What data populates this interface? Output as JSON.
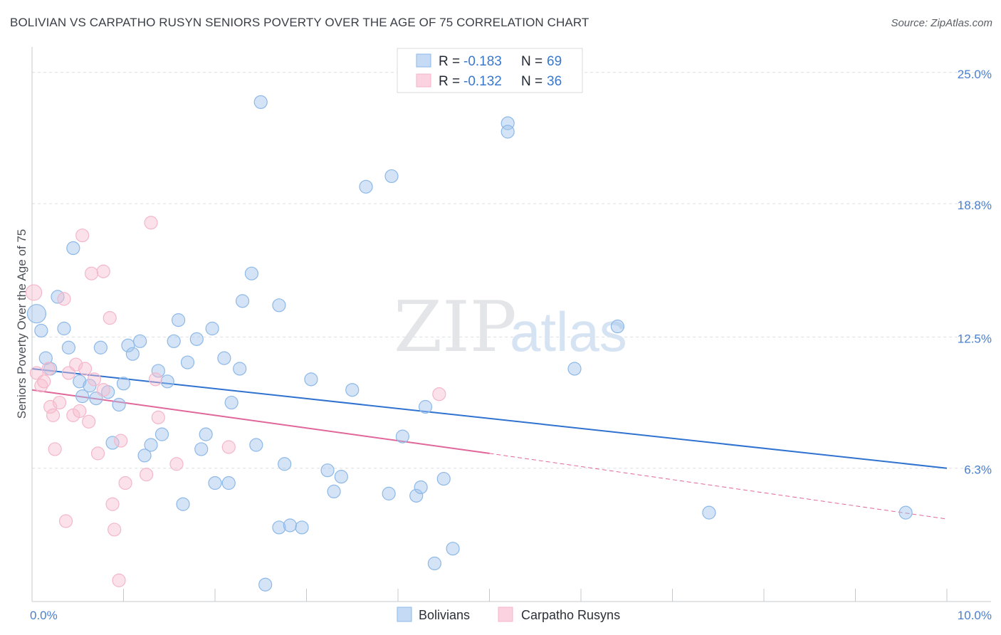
{
  "title": "BOLIVIAN VS CARPATHO RUSYN SENIORS POVERTY OVER THE AGE OF 75 CORRELATION CHART",
  "source": "Source: ZipAtlas.com",
  "watermark": {
    "zip": "ZIP",
    "atlas": "atlas"
  },
  "legend": {
    "r_label": "R = ",
    "n_label": "N = ",
    "rows": [
      {
        "series": "Bolivians",
        "r": "-0.183",
        "n": "69"
      },
      {
        "series": "Carpatho Rusyns",
        "r": "-0.132",
        "n": "36"
      }
    ]
  },
  "chart_data": {
    "type": "scatter",
    "title": "BOLIVIAN VS CARPATHO RUSYN SENIORS POVERTY OVER THE AGE OF 75 CORRELATION CHART",
    "xlabel": "",
    "ylabel": "Seniors Poverty Over the Age of 75",
    "xlim": [
      0,
      10
    ],
    "ylim": [
      0,
      25.8
    ],
    "x_tick_labels": [
      "0.0%",
      "10.0%"
    ],
    "y_ticks": [
      6.3,
      12.5,
      18.8,
      25.0
    ],
    "y_tick_labels": [
      "6.3%",
      "12.5%",
      "18.8%",
      "25.0%"
    ],
    "legend_position": "bottom-center",
    "series": [
      {
        "name": "Bolivians",
        "color": "#8db8e8",
        "line_color": "#2f72d0",
        "r": -0.183,
        "n": 69,
        "trend": {
          "x": [
            0.0,
            10.0
          ],
          "y": [
            11.0,
            6.3
          ]
        },
        "points": [
          {
            "x": 0.05,
            "y": 13.6,
            "size": 22
          },
          {
            "x": 0.1,
            "y": 12.8,
            "size": 14
          },
          {
            "x": 0.15,
            "y": 11.5
          },
          {
            "x": 0.2,
            "y": 11.0
          },
          {
            "x": 0.28,
            "y": 14.4
          },
          {
            "x": 0.35,
            "y": 12.9
          },
          {
            "x": 0.4,
            "y": 12.0
          },
          {
            "x": 0.45,
            "y": 16.7
          },
          {
            "x": 0.52,
            "y": 10.4
          },
          {
            "x": 0.55,
            "y": 9.7
          },
          {
            "x": 0.63,
            "y": 10.2
          },
          {
            "x": 0.7,
            "y": 9.6
          },
          {
            "x": 0.75,
            "y": 12.0
          },
          {
            "x": 0.83,
            "y": 9.9
          },
          {
            "x": 0.88,
            "y": 7.5
          },
          {
            "x": 0.95,
            "y": 9.3
          },
          {
            "x": 1.0,
            "y": 10.3
          },
          {
            "x": 1.05,
            "y": 12.1
          },
          {
            "x": 1.1,
            "y": 11.7
          },
          {
            "x": 1.18,
            "y": 12.3
          },
          {
            "x": 1.23,
            "y": 6.9
          },
          {
            "x": 1.3,
            "y": 7.4
          },
          {
            "x": 1.38,
            "y": 10.9
          },
          {
            "x": 1.42,
            "y": 7.9
          },
          {
            "x": 1.48,
            "y": 10.4
          },
          {
            "x": 1.55,
            "y": 12.3
          },
          {
            "x": 1.6,
            "y": 13.3
          },
          {
            "x": 1.65,
            "y": 4.6
          },
          {
            "x": 1.7,
            "y": 11.3
          },
          {
            "x": 1.8,
            "y": 12.4
          },
          {
            "x": 1.85,
            "y": 7.2
          },
          {
            "x": 1.9,
            "y": 7.9
          },
          {
            "x": 1.97,
            "y": 12.9
          },
          {
            "x": 2.0,
            "y": 5.6
          },
          {
            "x": 2.1,
            "y": 11.5
          },
          {
            "x": 2.15,
            "y": 5.6
          },
          {
            "x": 2.18,
            "y": 9.4
          },
          {
            "x": 2.27,
            "y": 11.0
          },
          {
            "x": 2.3,
            "y": 14.2
          },
          {
            "x": 2.4,
            "y": 15.5
          },
          {
            "x": 2.45,
            "y": 7.4
          },
          {
            "x": 2.5,
            "y": 23.6
          },
          {
            "x": 2.55,
            "y": 0.8
          },
          {
            "x": 2.7,
            "y": 3.5
          },
          {
            "x": 2.7,
            "y": 14.0
          },
          {
            "x": 2.76,
            "y": 6.5
          },
          {
            "x": 2.82,
            "y": 3.6
          },
          {
            "x": 2.95,
            "y": 3.5
          },
          {
            "x": 3.05,
            "y": 10.5
          },
          {
            "x": 3.23,
            "y": 6.2
          },
          {
            "x": 3.3,
            "y": 5.2
          },
          {
            "x": 3.38,
            "y": 5.9
          },
          {
            "x": 3.5,
            "y": 10.0
          },
          {
            "x": 3.65,
            "y": 19.6
          },
          {
            "x": 3.9,
            "y": 5.1
          },
          {
            "x": 3.93,
            "y": 20.1
          },
          {
            "x": 4.05,
            "y": 7.8
          },
          {
            "x": 4.2,
            "y": 5.0
          },
          {
            "x": 4.25,
            "y": 5.4
          },
          {
            "x": 4.3,
            "y": 9.2
          },
          {
            "x": 4.4,
            "y": 1.8
          },
          {
            "x": 4.5,
            "y": 5.8
          },
          {
            "x": 4.6,
            "y": 2.5
          },
          {
            "x": 5.2,
            "y": 22.6
          },
          {
            "x": 5.2,
            "y": 22.2
          },
          {
            "x": 5.93,
            "y": 11.0
          },
          {
            "x": 6.4,
            "y": 13.0
          },
          {
            "x": 7.4,
            "y": 4.2
          },
          {
            "x": 9.55,
            "y": 4.2
          }
        ]
      },
      {
        "name": "Carpatho Rusyns",
        "color": "#f4b6c9",
        "line_color": "#e0679a",
        "r": -0.132,
        "n": 36,
        "trend": {
          "x": [
            0.0,
            5.0
          ],
          "y": [
            10.0,
            7.0
          ]
        },
        "trend_dashed": {
          "x": [
            5.0,
            10.0
          ],
          "y": [
            7.0,
            3.9
          ]
        },
        "points": [
          {
            "x": 0.02,
            "y": 14.6,
            "size": 18
          },
          {
            "x": 0.05,
            "y": 10.8
          },
          {
            "x": 0.1,
            "y": 10.2
          },
          {
            "x": 0.13,
            "y": 10.4
          },
          {
            "x": 0.18,
            "y": 11.0
          },
          {
            "x": 0.2,
            "y": 9.2
          },
          {
            "x": 0.23,
            "y": 8.8
          },
          {
            "x": 0.25,
            "y": 7.2
          },
          {
            "x": 0.3,
            "y": 9.4
          },
          {
            "x": 0.35,
            "y": 14.3
          },
          {
            "x": 0.37,
            "y": 3.8
          },
          {
            "x": 0.4,
            "y": 10.8
          },
          {
            "x": 0.45,
            "y": 8.8
          },
          {
            "x": 0.48,
            "y": 11.2
          },
          {
            "x": 0.52,
            "y": 9.0
          },
          {
            "x": 0.55,
            "y": 17.3
          },
          {
            "x": 0.58,
            "y": 11.0
          },
          {
            "x": 0.62,
            "y": 8.5
          },
          {
            "x": 0.65,
            "y": 15.5
          },
          {
            "x": 0.68,
            "y": 10.5
          },
          {
            "x": 0.72,
            "y": 7.0
          },
          {
            "x": 0.78,
            "y": 10.0
          },
          {
            "x": 0.78,
            "y": 15.6
          },
          {
            "x": 0.85,
            "y": 13.4
          },
          {
            "x": 0.88,
            "y": 4.6
          },
          {
            "x": 0.9,
            "y": 3.4
          },
          {
            "x": 0.95,
            "y": 1.0
          },
          {
            "x": 0.97,
            "y": 7.6
          },
          {
            "x": 1.02,
            "y": 5.6
          },
          {
            "x": 1.25,
            "y": 6.0
          },
          {
            "x": 1.3,
            "y": 17.9
          },
          {
            "x": 1.35,
            "y": 10.5
          },
          {
            "x": 1.38,
            "y": 8.7
          },
          {
            "x": 1.58,
            "y": 6.5
          },
          {
            "x": 2.15,
            "y": 7.3
          },
          {
            "x": 4.45,
            "y": 9.8
          }
        ]
      }
    ]
  }
}
